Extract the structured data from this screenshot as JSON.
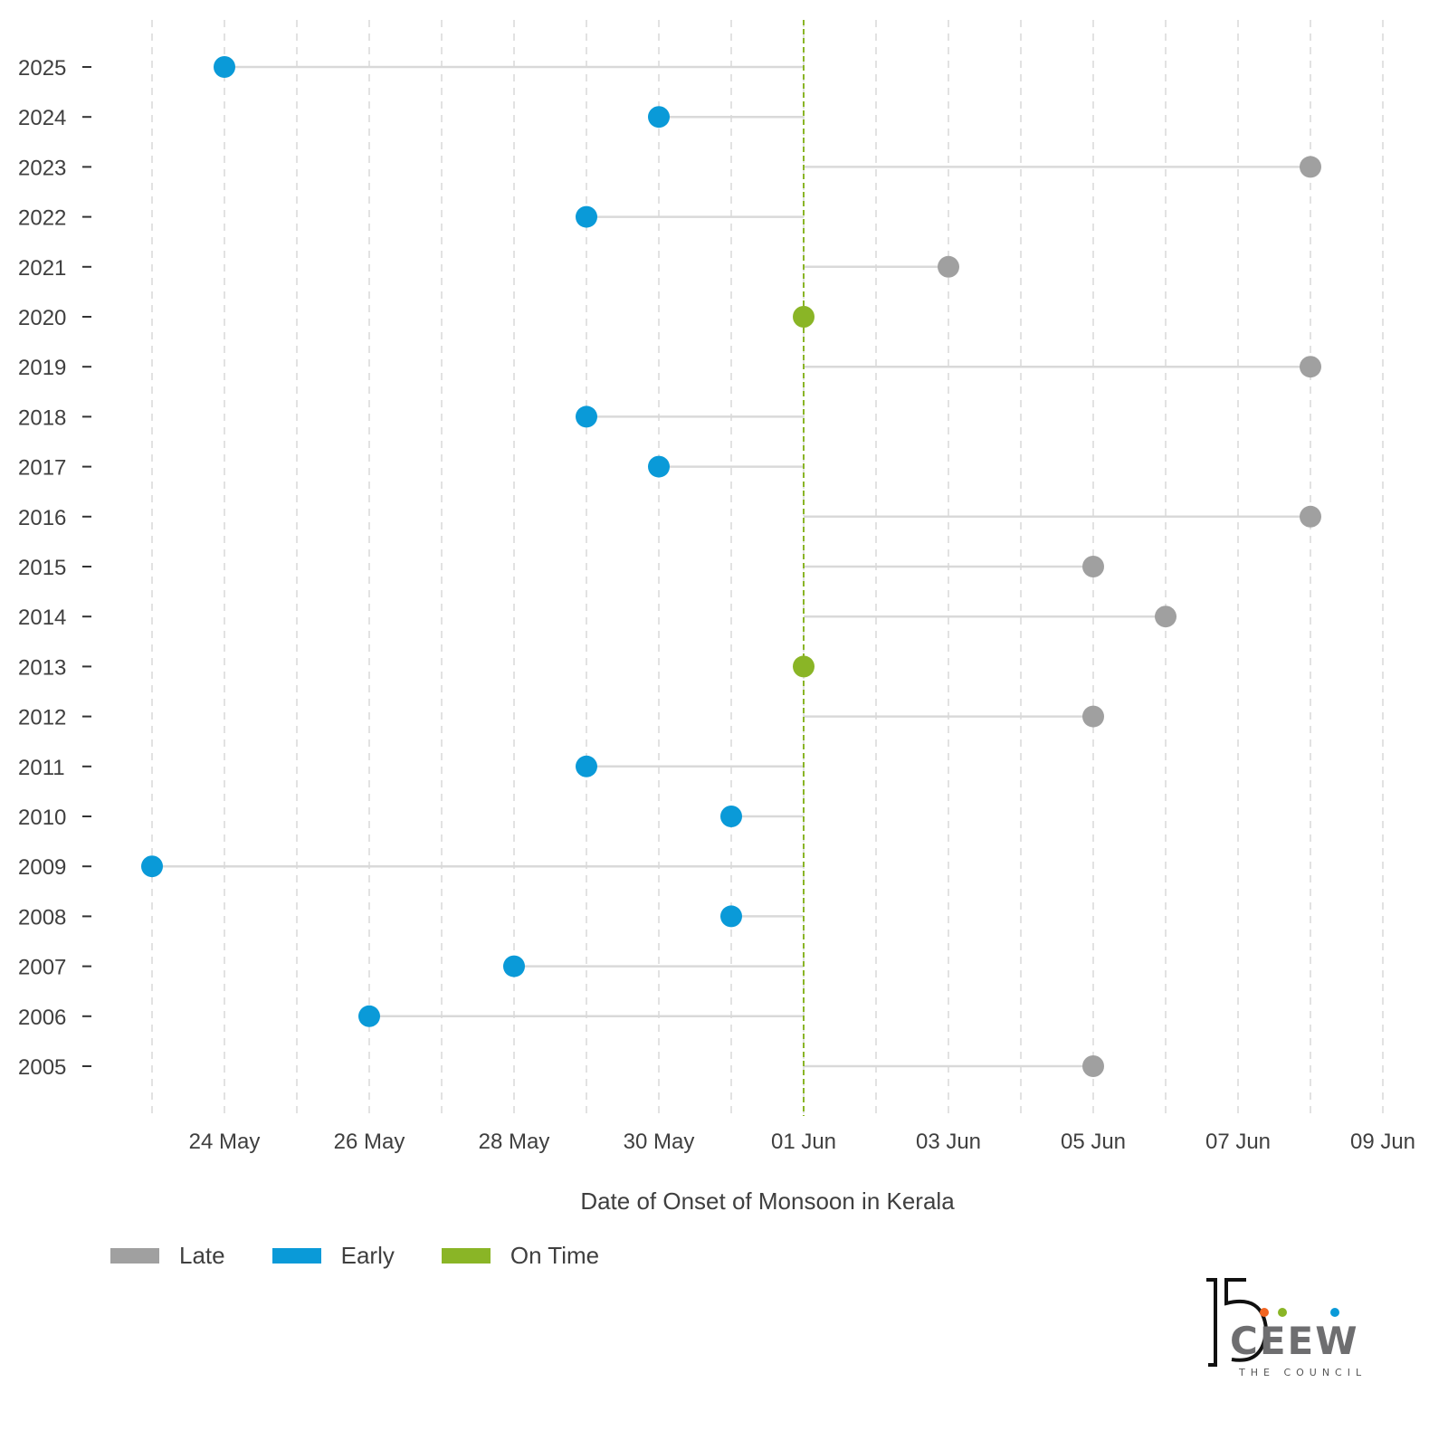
{
  "chart_data": {
    "type": "dot-plot",
    "x_axis_title": "Date of Onset of Monsoon in Kerala",
    "x_ticks": [
      "24 May",
      "26 May",
      "28 May",
      "30 May",
      "01 Jun",
      "03 Jun",
      "05 Jun",
      "07 Jun",
      "09 Jun"
    ],
    "x_range": [
      "2025-05-23",
      "2025-06-09"
    ],
    "reference_date": "2025-06-01",
    "grid": "vertical dashed, daily",
    "legend": [
      {
        "label": "Late",
        "color": "#a0a0a0"
      },
      {
        "label": "Early",
        "color": "#0a9ad8"
      },
      {
        "label": "On Time",
        "color": "#8ab526"
      }
    ],
    "legend_position": "bottom-left",
    "points": [
      {
        "year": "2025",
        "date": "2025-05-24",
        "status": "Early"
      },
      {
        "year": "2024",
        "date": "2025-05-30",
        "status": "Early"
      },
      {
        "year": "2023",
        "date": "2025-06-08",
        "status": "Late"
      },
      {
        "year": "2022",
        "date": "2025-05-29",
        "status": "Early"
      },
      {
        "year": "2021",
        "date": "2025-06-03",
        "status": "Late"
      },
      {
        "year": "2020",
        "date": "2025-06-01",
        "status": "On Time"
      },
      {
        "year": "2019",
        "date": "2025-06-08",
        "status": "Late"
      },
      {
        "year": "2018",
        "date": "2025-05-29",
        "status": "Early"
      },
      {
        "year": "2017",
        "date": "2025-05-30",
        "status": "Early"
      },
      {
        "year": "2016",
        "date": "2025-06-08",
        "status": "Late"
      },
      {
        "year": "2015",
        "date": "2025-06-05",
        "status": "Late"
      },
      {
        "year": "2014",
        "date": "2025-06-06",
        "status": "Late"
      },
      {
        "year": "2013",
        "date": "2025-06-01",
        "status": "On Time"
      },
      {
        "year": "2012",
        "date": "2025-06-05",
        "status": "Late"
      },
      {
        "year": "2011",
        "date": "2025-05-29",
        "status": "Early"
      },
      {
        "year": "2010",
        "date": "2025-05-31",
        "status": "Early"
      },
      {
        "year": "2009",
        "date": "2025-05-23",
        "status": "Early"
      },
      {
        "year": "2008",
        "date": "2025-05-31",
        "status": "Early"
      },
      {
        "year": "2007",
        "date": "2025-05-28",
        "status": "Early"
      },
      {
        "year": "2006",
        "date": "2025-05-26",
        "status": "Early"
      },
      {
        "year": "2005",
        "date": "2025-06-05",
        "status": "Late"
      }
    ]
  },
  "colors": {
    "late": "#a0a0a0",
    "early": "#0a9ad8",
    "on_time": "#8ab526",
    "connector": "#d9d9d9",
    "grid": "#d8d8d8"
  },
  "logo": {
    "number": "15",
    "name": "CEEW",
    "tagline": "THE COUNCIL"
  }
}
